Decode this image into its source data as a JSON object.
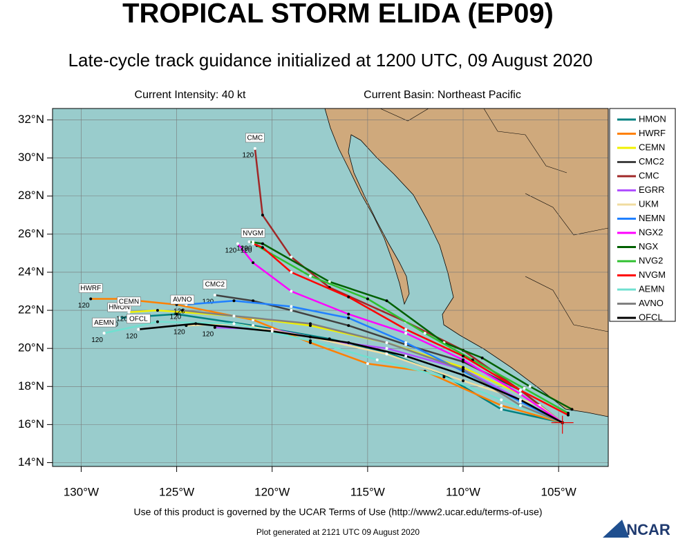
{
  "header": {
    "title": "TROPICAL STORM ELIDA (EP09)",
    "subtitle": "Late-cycle track guidance initialized at 1200 UTC, 09 August 2020",
    "intensity": "Current Intensity: 40 kt",
    "basin": "Current Basin: Northeast Pacific"
  },
  "chart_data": {
    "type": "track-map",
    "xlim": [
      -131.5,
      -102.4
    ],
    "ylim": [
      13.8,
      32.6
    ],
    "xticks": [
      {
        "value": -130,
        "label": "130°W"
      },
      {
        "value": -125,
        "label": "125°W"
      },
      {
        "value": -120,
        "label": "120°W"
      },
      {
        "value": -115,
        "label": "115°W"
      },
      {
        "value": -110,
        "label": "110°W"
      },
      {
        "value": -105,
        "label": "105°W"
      }
    ],
    "yticks": [
      {
        "value": 14,
        "label": "14°N"
      },
      {
        "value": 16,
        "label": "16°N"
      },
      {
        "value": 18,
        "label": "18°N"
      },
      {
        "value": 20,
        "label": "20°N"
      },
      {
        "value": 22,
        "label": "22°N"
      },
      {
        "value": 24,
        "label": "24°N"
      },
      {
        "value": 26,
        "label": "26°N"
      },
      {
        "value": 28,
        "label": "28°N"
      },
      {
        "value": 30,
        "label": "30°N"
      },
      {
        "value": 32,
        "label": "32°N"
      }
    ],
    "grid": true,
    "series": [
      {
        "name": "HMON",
        "color": "#008080",
        "end_hour": 120,
        "label_box": true,
        "lon": [
          -104.8,
          -108,
          -111,
          -114,
          -117,
          -121,
          -125,
          -128
        ],
        "lat": [
          16.1,
          16.8,
          18.6,
          19.8,
          20.5,
          21.2,
          21.8,
          21.6
        ]
      },
      {
        "name": "HWRF",
        "color": "#ff8000",
        "end_hour": 120,
        "label_box": true,
        "lon": [
          -104.8,
          -108,
          -112,
          -115,
          -118,
          -121,
          -125,
          -128,
          -129.5
        ],
        "lat": [
          16.1,
          17.0,
          18.8,
          19.2,
          20.3,
          21.5,
          22.3,
          22.6,
          22.6
        ]
      },
      {
        "name": "CEMN",
        "color": "#f0f000",
        "end_hour": 120,
        "label_box": true,
        "lon": [
          -104.8,
          -107,
          -110,
          -114,
          -118,
          -122,
          -126,
          -127.5
        ],
        "lat": [
          16.1,
          17.6,
          19.0,
          20.3,
          21.2,
          21.7,
          22.0,
          21.9
        ]
      },
      {
        "name": "CMC2",
        "color": "#404040",
        "end_hour": 120,
        "label_box": true,
        "lon": [
          -104.8,
          -107,
          -110,
          -113,
          -116,
          -119,
          -121,
          -123
        ],
        "lat": [
          16.1,
          17.8,
          19.3,
          20.2,
          21.2,
          22.0,
          22.5,
          22.8
        ]
      },
      {
        "name": "CMC",
        "color": "#a02828",
        "end_hour": 120,
        "label_box": true,
        "lon": [
          -104.8,
          -107,
          -110,
          -113,
          -117,
          -119,
          -120.5,
          -120.9
        ],
        "lat": [
          16.1,
          17.8,
          19.9,
          21.4,
          23.2,
          24.8,
          27.0,
          30.5
        ]
      },
      {
        "name": "EGRR",
        "color": "#b050ff",
        "end_hour": 120,
        "lon": [
          -104.8,
          -107,
          -110,
          -114,
          -117,
          -120,
          -123
        ],
        "lat": [
          16.1,
          17.3,
          18.9,
          20.0,
          20.4,
          21.0,
          21.1
        ]
      },
      {
        "name": "UKM",
        "color": "#f0dca0",
        "end_hour": 120,
        "lon": [
          -104.8,
          -106,
          -110,
          -114,
          -118,
          -122,
          -124.5
        ],
        "lat": [
          16.1,
          17.0,
          18.3,
          19.7,
          20.6,
          21.3,
          21.2
        ]
      },
      {
        "name": "NEMN",
        "color": "#2080ff",
        "end_hour": 120,
        "lon": [
          -104.8,
          -107,
          -110,
          -113,
          -116,
          -119,
          -122,
          -124.5
        ],
        "lat": [
          16.1,
          17.2,
          18.8,
          20.3,
          21.6,
          22.2,
          22.5,
          22.3
        ]
      },
      {
        "name": "NGX2",
        "color": "#ff00ff",
        "end_hour": 120,
        "lon": [
          -104.8,
          -107,
          -110,
          -113,
          -116,
          -119,
          -121,
          -121.8
        ],
        "lat": [
          16.1,
          17.6,
          19.4,
          20.8,
          21.8,
          23.0,
          24.5,
          25.5
        ]
      },
      {
        "name": "NGX",
        "color": "#006000",
        "end_hour": 120,
        "lon": [
          -104.3,
          -106.5,
          -109,
          -111,
          -114,
          -117,
          -120.5,
          -121.2
        ],
        "lat": [
          16.8,
          18.0,
          19.5,
          20.3,
          22.5,
          23.5,
          25.5,
          25.6
        ]
      },
      {
        "name": "NVG2",
        "color": "#30c030",
        "end_hour": 120,
        "lon": [
          -104.5,
          -106.8,
          -109.5,
          -112,
          -115,
          -118,
          -120.8,
          -121
        ],
        "lat": [
          16.6,
          17.9,
          19.4,
          20.8,
          22.6,
          23.8,
          25.4,
          25.6
        ]
      },
      {
        "name": "NVGM",
        "color": "#ff0000",
        "end_hour": 120,
        "label_box": true,
        "lon": [
          -104.5,
          -107,
          -110,
          -113,
          -116,
          -119,
          -120.5,
          -121
        ],
        "lat": [
          16.5,
          17.8,
          19.6,
          21.0,
          22.7,
          24.0,
          25.3,
          25.5
        ]
      },
      {
        "name": "AEMN",
        "color": "#70e0d0",
        "end_hour": 120,
        "label_box": true,
        "lon": [
          -104.8,
          -108,
          -111,
          -114.5,
          -118,
          -122,
          -126,
          -128.8
        ],
        "lat": [
          16.1,
          17.3,
          18.5,
          19.4,
          20.4,
          21.3,
          21.4,
          20.8
        ]
      },
      {
        "name": "AVNO",
        "color": "#808080",
        "end_hour": 120,
        "label_box": true,
        "lon": [
          -104.8,
          -107,
          -110,
          -114,
          -118,
          -122,
          -124.7
        ],
        "lat": [
          16.1,
          17.0,
          18.9,
          20.3,
          21.3,
          21.7,
          22.0
        ]
      },
      {
        "name": "OFCL",
        "color": "#000000",
        "end_hour": 120,
        "label_box": true,
        "lon": [
          -104.8,
          -107,
          -110,
          -113,
          -116,
          -120,
          -124,
          -127
        ],
        "lat": [
          16.1,
          17.3,
          18.6,
          19.6,
          20.3,
          20.9,
          21.3,
          21.0
        ]
      }
    ]
  },
  "footer": {
    "terms": "Use of this product is governed by the UCAR Terms of Use (http://www2.ucar.edu/terms-of-use)",
    "generated": "Plot generated at 2121 UTC   09 August 2020",
    "logo": "NCAR"
  }
}
